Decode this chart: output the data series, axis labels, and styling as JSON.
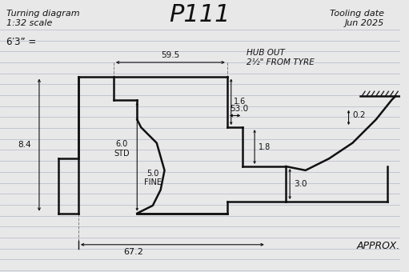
{
  "title": "P111",
  "subtitle_left1": "Turning diagram",
  "subtitle_left2": "1:32 scale",
  "top_right1": "Tooling date",
  "top_right2": "Jun 2025",
  "label_6ft3": "6′3” =",
  "dim_59_5": "59.5",
  "dim_53_0": "53.0",
  "dim_1_6": "1.6",
  "dim_1_8": "1.8",
  "dim_8_4": "8.4",
  "dim_6_0_std": "6.0\nSTD",
  "dim_5_0_fine": "5.0\nFINE",
  "dim_3_0": "3.0",
  "dim_0_2": "0.2",
  "hub_note": "HUB OUT\n2½\" FROM TYRE",
  "dim_67_2": "67.2",
  "approx": "APPROX.",
  "bg_color": "#e8e8e8",
  "line_color": "#111111",
  "line_color_ruled": "#b0b8c8"
}
